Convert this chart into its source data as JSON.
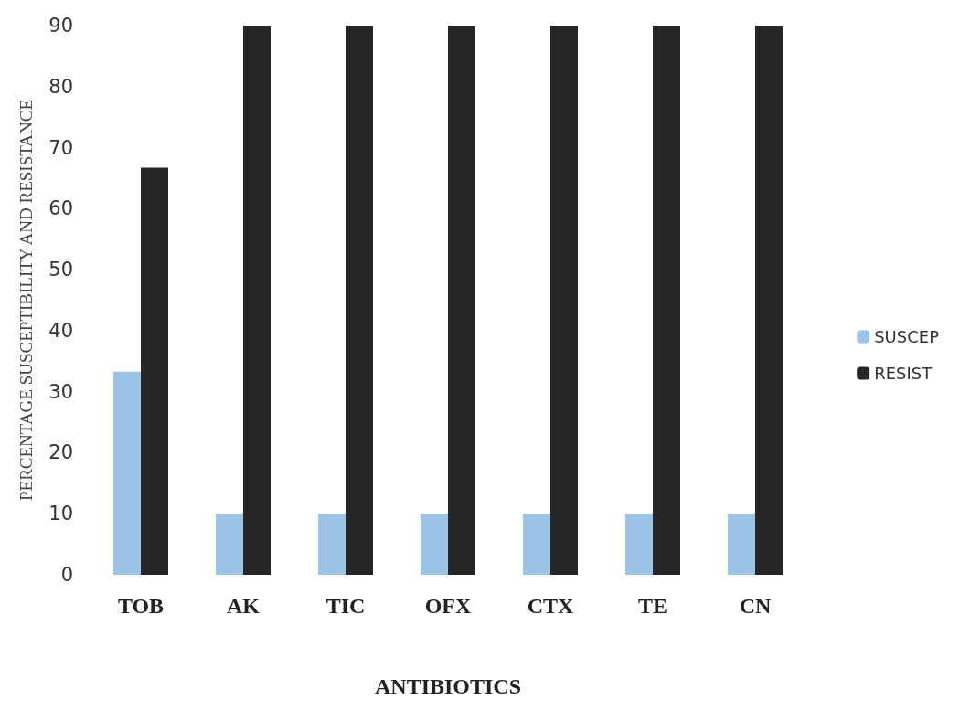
{
  "chart_data": {
    "type": "bar",
    "xlabel": "ANTIBIOTICS",
    "ylabel": "PERCENTAGE SUSCEPTIBILITY AND RESISTANCE",
    "categories": [
      "TOB",
      "AK",
      "TIC",
      "OFX",
      "CTX",
      "TE",
      "CN"
    ],
    "series": [
      {
        "name": "SUSCEP",
        "color": "#9dc3e6",
        "values": [
          33.3,
          10,
          10,
          10,
          10,
          10,
          10
        ]
      },
      {
        "name": "RESIST",
        "color": "#262626",
        "values": [
          66.7,
          90,
          90,
          90,
          90,
          90,
          90
        ]
      }
    ],
    "ylim": [
      0,
      90
    ],
    "yticks": [
      0,
      10,
      20,
      30,
      40,
      50,
      60,
      70,
      80,
      90
    ],
    "grid": false,
    "legend": "right"
  }
}
